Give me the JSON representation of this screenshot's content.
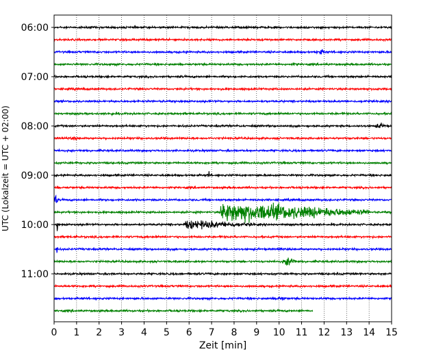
{
  "chart_data": {
    "type": "line",
    "title": "",
    "xlabel": "Zeit  [min]",
    "ylabel": "UTC (Lokalzeit = UTC + 02:00)",
    "xlim": [
      0,
      15
    ],
    "x_ticks": [
      "0",
      "1",
      "2",
      "3",
      "4",
      "5",
      "6",
      "7",
      "8",
      "9",
      "10",
      "11",
      "12",
      "13",
      "14",
      "15"
    ],
    "y_ticks": [
      {
        "label": "06:00",
        "trace_index": 0
      },
      {
        "label": "07:00",
        "trace_index": 4
      },
      {
        "label": "08:00",
        "trace_index": 8
      },
      {
        "label": "09:00",
        "trace_index": 12
      },
      {
        "label": "10:00",
        "trace_index": 16
      },
      {
        "label": "11:00",
        "trace_index": 20
      }
    ],
    "grid": "vertical-dotted",
    "trace_interval_minutes": 15,
    "trace_count": 24,
    "color_cycle": [
      "#000000",
      "#ff0000",
      "#0000ff",
      "#008000"
    ],
    "last_trace_end_minute": 11.5,
    "events": [
      {
        "trace_index": 2,
        "start_min": 11.6,
        "end_min": 12.3,
        "amplitude": 0.6
      },
      {
        "trace_index": 3,
        "start_min": 10.5,
        "end_min": 11.0,
        "amplitude": 0.35
      },
      {
        "trace_index": 3,
        "start_min": 12.0,
        "end_min": 12.4,
        "amplitude": 0.3
      },
      {
        "trace_index": 5,
        "start_min": 14.0,
        "end_min": 14.9,
        "amplitude": 0.3
      },
      {
        "trace_index": 6,
        "start_min": 4.6,
        "end_min": 5.2,
        "amplitude": 0.3
      },
      {
        "trace_index": 7,
        "start_min": 2.4,
        "end_min": 2.8,
        "amplitude": 0.45
      },
      {
        "trace_index": 8,
        "start_min": 14.2,
        "end_min": 15.0,
        "amplitude": 0.6
      },
      {
        "trace_index": 9,
        "start_min": 0.6,
        "end_min": 1.4,
        "amplitude": 0.4
      },
      {
        "trace_index": 12,
        "start_min": 6.8,
        "end_min": 6.95,
        "amplitude": 1.2
      },
      {
        "trace_index": 14,
        "start_min": 0.0,
        "end_min": 0.25,
        "amplitude": 1.2
      },
      {
        "trace_index": 15,
        "start_min": 7.4,
        "end_min": 14.0,
        "amplitude": 2.3
      },
      {
        "trace_index": 16,
        "start_min": 0.1,
        "end_min": 0.2,
        "amplitude": 1.8
      },
      {
        "trace_index": 16,
        "start_min": 5.8,
        "end_min": 9.2,
        "amplitude": 1.0
      },
      {
        "trace_index": 17,
        "start_min": 0.9,
        "end_min": 1.05,
        "amplitude": 0.6
      },
      {
        "trace_index": 18,
        "start_min": 0.1,
        "end_min": 0.2,
        "amplitude": 1.6
      },
      {
        "trace_index": 18,
        "start_min": 9.9,
        "end_min": 10.3,
        "amplitude": 0.45
      },
      {
        "trace_index": 19,
        "start_min": 10.1,
        "end_min": 11.0,
        "amplitude": 1.0
      },
      {
        "trace_index": 20,
        "start_min": 6.2,
        "end_min": 6.6,
        "amplitude": 0.3
      },
      {
        "trace_index": 22,
        "start_min": 9.7,
        "end_min": 10.6,
        "amplitude": 0.5
      },
      {
        "trace_index": 22,
        "start_min": 1.0,
        "end_min": 1.7,
        "amplitude": 0.3
      }
    ]
  }
}
